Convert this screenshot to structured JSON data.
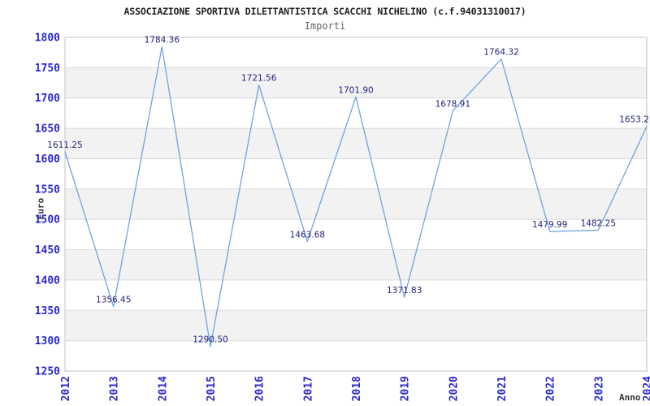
{
  "chart_data": {
    "type": "line",
    "title": "ASSOCIAZIONE SPORTIVA DILETTANTISTICA SCACCHI NICHELINO (c.f.94031310017)",
    "subtitle": "Importi",
    "xlabel": "Anno",
    "ylabel": "Euro",
    "x": [
      "2012",
      "2013",
      "2014",
      "2015",
      "2016",
      "2017",
      "2018",
      "2019",
      "2020",
      "2021",
      "2022",
      "2023",
      "2024"
    ],
    "values": [
      1611.25,
      1356.45,
      1784.36,
      1290.5,
      1721.56,
      1463.68,
      1701.9,
      1371.83,
      1678.91,
      1764.32,
      1479.99,
      1482.25,
      1653.2
    ],
    "point_labels": [
      "1611.25",
      "1356.45",
      "1784.36",
      "1290.50",
      "1721.56",
      "1463.68",
      "1701.90",
      "1371.83",
      "1678.91",
      "1764.32",
      "1479.99",
      "1482.25",
      "1653.2"
    ],
    "ylim": [
      1250,
      1800
    ],
    "ytick_step": 50,
    "yticks": [
      1250,
      1300,
      1350,
      1400,
      1450,
      1500,
      1550,
      1600,
      1650,
      1700,
      1750,
      1800
    ],
    "grid": "horizontal",
    "band_alternate": true,
    "legend": "none",
    "colors": {
      "line": "#6ba6e3",
      "tick_label": "#2929d1",
      "point_label": "#24247d",
      "band": "#f2f2f2",
      "grid": "#d9d9d9",
      "border": "#c2c2c2",
      "title": "#222222",
      "subtitle": "#666666",
      "axis_label": "#333333",
      "background": "#ffffff"
    }
  }
}
